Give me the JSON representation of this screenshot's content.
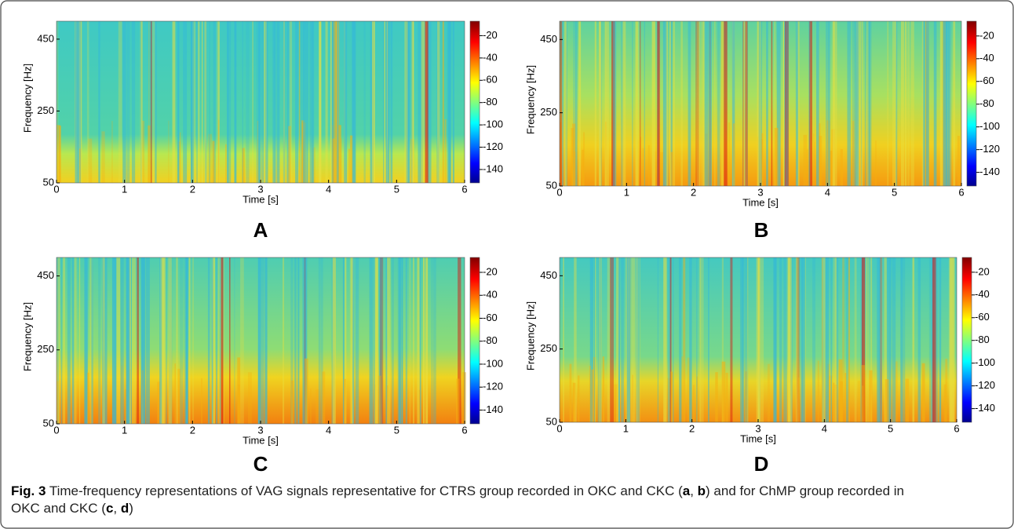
{
  "chart_data": [
    {
      "type": "heatmap",
      "panel": "A",
      "x_label": "Time [s]",
      "y_label": "Frequency [Hz]",
      "xlim": [
        0,
        6
      ],
      "xticks": [
        0,
        1,
        2,
        3,
        4,
        5,
        6
      ],
      "ylim": [
        50,
        500
      ],
      "yticks": [
        50,
        250,
        450
      ],
      "clim": [
        -152,
        -7
      ],
      "cticks": [
        -20,
        -40,
        -60,
        -80,
        -100,
        -120,
        -140
      ]
    },
    {
      "type": "heatmap",
      "panel": "B",
      "x_label": "Time [s]",
      "y_label": "Frequency [Hz]",
      "xlim": [
        0,
        6
      ],
      "xticks": [
        0,
        1,
        2,
        3,
        4,
        5,
        6
      ],
      "ylim": [
        50,
        500
      ],
      "yticks": [
        50,
        250,
        450
      ],
      "clim": [
        -152,
        -7
      ],
      "cticks": [
        -20,
        -40,
        -60,
        -80,
        -100,
        -120,
        -140
      ]
    },
    {
      "type": "heatmap",
      "panel": "C",
      "x_label": "Time [s]",
      "y_label": "Frequency [Hz]",
      "xlim": [
        0,
        6
      ],
      "xticks": [
        0,
        1,
        2,
        3,
        4,
        5,
        6
      ],
      "ylim": [
        50,
        500
      ],
      "yticks": [
        50,
        250,
        450
      ],
      "clim": [
        -152,
        -7
      ],
      "cticks": [
        -20,
        -40,
        -60,
        -80,
        -100,
        -120,
        -140
      ]
    },
    {
      "type": "heatmap",
      "panel": "D",
      "x_label": "Time [s]",
      "y_label": "Frequency [Hz]",
      "xlim": [
        0,
        6
      ],
      "xticks": [
        0,
        1,
        2,
        3,
        4,
        5,
        6
      ],
      "ylim": [
        50,
        500
      ],
      "yticks": [
        50,
        250,
        450
      ],
      "clim": [
        -152,
        -7
      ],
      "cticks": [
        -20,
        -40,
        -60,
        -80,
        -100,
        -120,
        -140
      ]
    }
  ],
  "caption": {
    "label": "Fig. 3",
    "parts": [
      " Time-frequency representations of VAG signals representative for CTRS group recorded in OKC and CKC (",
      "a",
      ", ",
      "b",
      ") and for ChMP group recorded in OKC and CKC (",
      "c",
      ", ",
      "d",
      ")"
    ]
  }
}
